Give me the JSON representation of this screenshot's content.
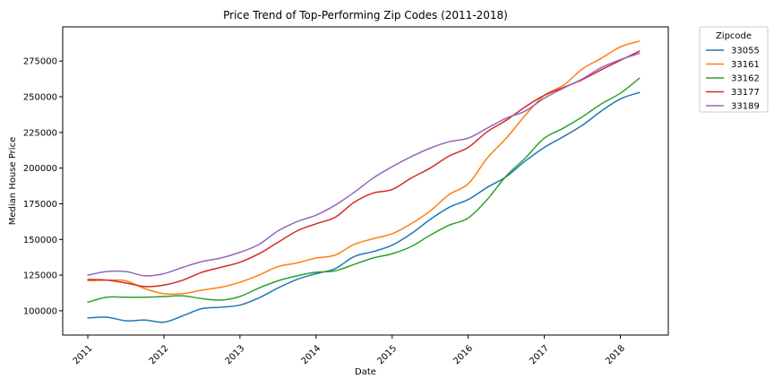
{
  "chart_data": {
    "type": "line",
    "title": "Price Trend of Top-Performing Zip Codes (2011-2018)",
    "xlabel": "Date",
    "ylabel": "Median House Price",
    "xlim": [
      2010.67,
      2018.63
    ],
    "ylim": [
      83000,
      299000
    ],
    "x_ticks": [
      2011,
      2012,
      2013,
      2014,
      2015,
      2016,
      2017,
      2018
    ],
    "x_tick_labels": [
      "2011",
      "2012",
      "2013",
      "2014",
      "2015",
      "2016",
      "2017",
      "2018"
    ],
    "y_ticks": [
      100000,
      125000,
      150000,
      175000,
      200000,
      225000,
      250000,
      275000
    ],
    "y_tick_labels": [
      "100000",
      "125000",
      "150000",
      "175000",
      "200000",
      "225000",
      "250000",
      "275000"
    ],
    "grid": false,
    "legend": {
      "title": "Zipcode",
      "placement": "outside-top-right"
    },
    "x": [
      2011.0,
      2011.25,
      2011.5,
      2011.75,
      2012.0,
      2012.25,
      2012.5,
      2012.75,
      2013.0,
      2013.25,
      2013.5,
      2013.75,
      2014.0,
      2014.25,
      2014.5,
      2014.75,
      2015.0,
      2015.25,
      2015.5,
      2015.75,
      2016.0,
      2016.25,
      2016.5,
      2016.75,
      2017.0,
      2017.25,
      2017.5,
      2017.75,
      2018.0,
      2018.25
    ],
    "series": [
      {
        "name": "33055",
        "color": "#1f77b4",
        "values": [
          95000,
          95500,
          93000,
          93500,
          92000,
          96500,
          101500,
          102500,
          104000,
          109000,
          116000,
          122000,
          126000,
          129500,
          138000,
          141500,
          146000,
          154000,
          164000,
          172500,
          178000,
          186500,
          194000,
          205000,
          214500,
          222000,
          230000,
          240000,
          248500,
          253000
        ]
      },
      {
        "name": "33161",
        "color": "#ff7f0e",
        "values": [
          121000,
          121500,
          121000,
          115500,
          112000,
          112000,
          114500,
          116500,
          120000,
          125000,
          131000,
          133500,
          137000,
          139000,
          146500,
          150500,
          154000,
          161000,
          170000,
          181500,
          189000,
          207000,
          221000,
          237000,
          251000,
          258000,
          269500,
          277000,
          285000,
          289000
        ]
      },
      {
        "name": "33162",
        "color": "#2ca02c",
        "values": [
          106000,
          109500,
          109500,
          109500,
          110000,
          110500,
          108500,
          107500,
          110000,
          116000,
          121000,
          124500,
          127000,
          128000,
          132500,
          137000,
          140000,
          145000,
          153000,
          160000,
          165000,
          178000,
          194500,
          207000,
          221000,
          228000,
          236000,
          245000,
          252500,
          263000
        ]
      },
      {
        "name": "33177",
        "color": "#d62728",
        "values": [
          122000,
          121500,
          119500,
          117000,
          118000,
          121500,
          127000,
          130500,
          134000,
          140000,
          148000,
          156000,
          161000,
          165500,
          176000,
          182500,
          185000,
          193000,
          200000,
          208500,
          214500,
          225500,
          233500,
          243000,
          251000,
          256500,
          262000,
          269000,
          275500,
          282000
        ]
      },
      {
        "name": "33189",
        "color": "#9467bd",
        "values": [
          125000,
          127500,
          127500,
          124500,
          126000,
          130500,
          134500,
          137000,
          141000,
          146500,
          156000,
          162500,
          167000,
          174000,
          183000,
          193000,
          201000,
          208000,
          214000,
          218500,
          221000,
          228000,
          235000,
          240000,
          249000,
          256000,
          262500,
          270500,
          276000,
          280500
        ]
      }
    ]
  }
}
